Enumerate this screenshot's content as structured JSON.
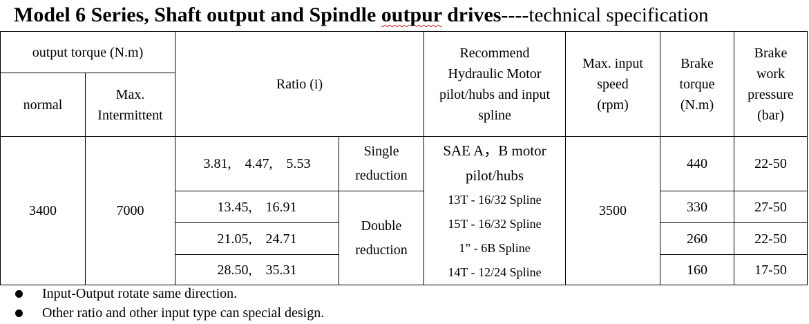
{
  "title": {
    "parts": [
      "Model 6 Series, Shaft output and Spindle ",
      "outpur",
      " drives----"
    ],
    "suffix": "technical specification"
  },
  "table": {
    "header": {
      "output_torque": "output torque (N.m)",
      "normal": "normal",
      "max_intermittent": [
        "Max.",
        "Intermittent"
      ],
      "ratio": "Ratio (i)",
      "recommend": [
        "Recommend",
        "Hydraulic Motor",
        "pilot/hubs and input",
        "spline"
      ],
      "max_speed": [
        "Max. input",
        "speed",
        "(rpm)"
      ],
      "brake_torque": [
        "Brake",
        "torque",
        "(N.m)"
      ],
      "brake_pressure": [
        "Brake",
        "work",
        "pressure",
        "(bar)"
      ]
    },
    "normal": "3400",
    "max_intermittent": "7000",
    "ratios": [
      "3.81,    4.47,    5.53",
      "13.45,    16.91",
      "21.05,    24.71",
      "28.50,    35.31"
    ],
    "single_reduction": [
      "Single",
      "reduction"
    ],
    "double_reduction": [
      "Double",
      "reduction"
    ],
    "motor": {
      "heading": [
        "SAE A，B motor",
        "pilot/hubs"
      ],
      "splines": [
        "13T - 16/32 Spline",
        "15T - 16/32 Spline",
        "1” - 6B Spline",
        "14T - 12/24 Spline"
      ]
    },
    "max_speed": "3500",
    "brake_torque": [
      "440",
      "330",
      "260",
      "160"
    ],
    "brake_pressure": [
      "22-50",
      "27-50",
      "22-50",
      "17-50"
    ]
  },
  "notes": [
    "Input-Output rotate same direction.",
    "Other ratio and other input type can special design."
  ]
}
